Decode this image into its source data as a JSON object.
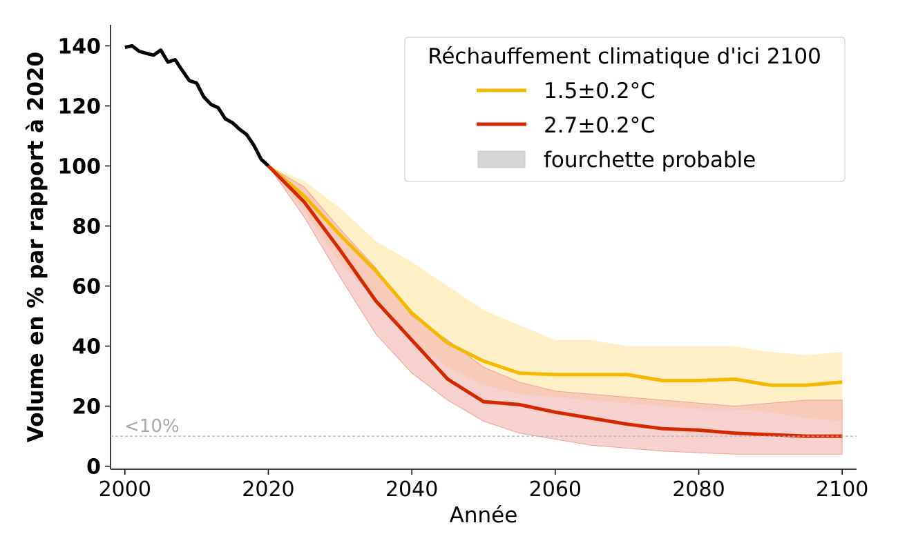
{
  "chart_data": {
    "type": "line",
    "title": "",
    "xlabel": "Année",
    "ylabel": "Volume en % par rapport à 2020",
    "xlim": [
      1998,
      2102
    ],
    "ylim": [
      -1,
      147
    ],
    "x_ticks": [
      "2000",
      "2020",
      "2040",
      "2060",
      "2080",
      "2100"
    ],
    "y_ticks": [
      "0",
      "20",
      "40",
      "60",
      "80",
      "100",
      "120",
      "140"
    ],
    "threshold": {
      "value": 10,
      "label": "<10%"
    },
    "legend": {
      "title": "Réchauffement climatique d'ici 2100",
      "entries": [
        "1.5±0.2°C",
        "2.7±0.2°C",
        "fourchette probable"
      ]
    },
    "colors": {
      "historical": "#000000",
      "s15": "#f5b800",
      "s15_band": "#fde9b4",
      "s27": "#d42800",
      "s27_band": "#f1b3ad",
      "threshold": "#b0b0b0",
      "range_swatch": "#d6d6d6"
    },
    "series": [
      {
        "name": "historique",
        "x": [
          2000,
          2001,
          2002,
          2003,
          2004,
          2005,
          2006,
          2007,
          2008,
          2009,
          2010,
          2011,
          2012,
          2013,
          2014,
          2015,
          2016,
          2017,
          2018,
          2019,
          2020
        ],
        "values": [
          139.5,
          140.0,
          138.2,
          137.5,
          136.9,
          138.6,
          134.6,
          135.4,
          131.8,
          128.4,
          127.6,
          123.0,
          120.5,
          119.4,
          115.7,
          114.4,
          112.2,
          110.4,
          106.8,
          102.2,
          100.0
        ]
      },
      {
        "name": "1.5±0.2°C",
        "x": [
          2020,
          2025,
          2030,
          2035,
          2040,
          2045,
          2050,
          2055,
          2060,
          2065,
          2070,
          2075,
          2080,
          2085,
          2090,
          2095,
          2100
        ],
        "values": [
          100,
          90,
          77,
          65,
          51,
          41,
          35,
          31,
          30.5,
          30.5,
          30.5,
          28.5,
          28.5,
          29,
          27,
          27,
          28
        ],
        "lower": [
          100,
          85,
          68,
          55,
          41,
          33,
          27,
          24,
          23,
          22,
          21,
          20,
          19,
          19,
          18,
          16,
          15
        ],
        "upper": [
          100,
          95,
          86,
          75,
          68,
          60,
          52,
          47,
          42,
          42,
          40,
          40,
          40,
          40,
          38,
          37,
          38
        ]
      },
      {
        "name": "2.7±0.2°C",
        "x": [
          2020,
          2025,
          2030,
          2035,
          2040,
          2045,
          2050,
          2055,
          2060,
          2065,
          2070,
          2075,
          2080,
          2085,
          2090,
          2095,
          2100
        ],
        "values": [
          100,
          88,
          72,
          55,
          42,
          29,
          21.5,
          20.5,
          18,
          16,
          14,
          12.5,
          12,
          11,
          10.5,
          10,
          10
        ],
        "lower": [
          100,
          83,
          63,
          44,
          31,
          22,
          15,
          11,
          9,
          7,
          6,
          5,
          4.5,
          4,
          4,
          4,
          4
        ],
        "upper": [
          100,
          93,
          79,
          66,
          50,
          42,
          33,
          28,
          25,
          24,
          23,
          22,
          21,
          20,
          21,
          22,
          22
        ]
      }
    ]
  }
}
